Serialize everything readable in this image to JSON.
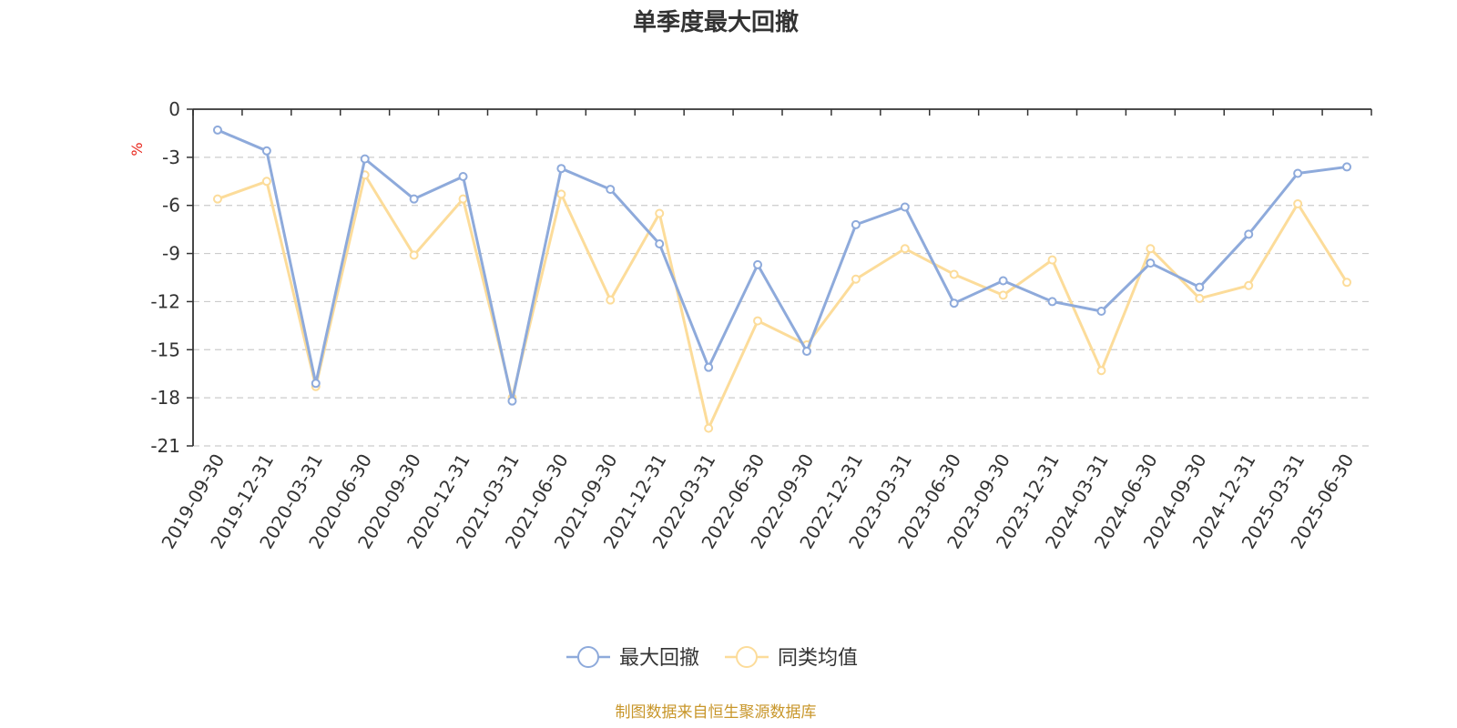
{
  "chart_data": {
    "type": "line",
    "title": "单季度最大回撤",
    "ylabel": "%",
    "ylim": [
      -21,
      0
    ],
    "yticks": [
      0,
      -3,
      -6,
      -9,
      -12,
      -15,
      -18,
      -21
    ],
    "grid": true,
    "legend_position": "bottom-center",
    "categories": [
      "2019-09-30",
      "2019-12-31",
      "2020-03-31",
      "2020-06-30",
      "2020-09-30",
      "2020-12-31",
      "2021-03-31",
      "2021-06-30",
      "2021-09-30",
      "2021-12-31",
      "2022-03-31",
      "2022-06-30",
      "2022-09-30",
      "2022-12-31",
      "2023-03-31",
      "2023-06-30",
      "2023-09-30",
      "2023-12-31",
      "2024-03-31",
      "2024-06-30",
      "2024-09-30",
      "2024-12-31",
      "2025-03-31",
      "2025-06-30"
    ],
    "series": [
      {
        "name": "最大回撤",
        "color": "#8eaadb",
        "values": [
          -1.3,
          -2.6,
          -17.1,
          -3.1,
          -5.6,
          -4.2,
          -18.2,
          -3.7,
          -5.0,
          -8.4,
          -16.1,
          -9.7,
          -15.1,
          -7.2,
          -6.1,
          -12.1,
          -10.7,
          -12.0,
          -12.6,
          -9.6,
          -11.1,
          -7.8,
          -4.0,
          -3.6
        ]
      },
      {
        "name": "同类均值",
        "color": "#fcdc9a",
        "values": [
          -5.6,
          -4.5,
          -17.3,
          -4.1,
          -9.1,
          -5.6,
          -18.0,
          -5.3,
          -11.9,
          -6.5,
          -19.9,
          -13.2,
          -14.7,
          -10.6,
          -8.7,
          -10.3,
          -11.6,
          -9.4,
          -16.3,
          -8.7,
          -11.8,
          -11.0,
          -5.9,
          -10.8
        ]
      }
    ],
    "source": "制图数据来自恒生聚源数据库"
  }
}
